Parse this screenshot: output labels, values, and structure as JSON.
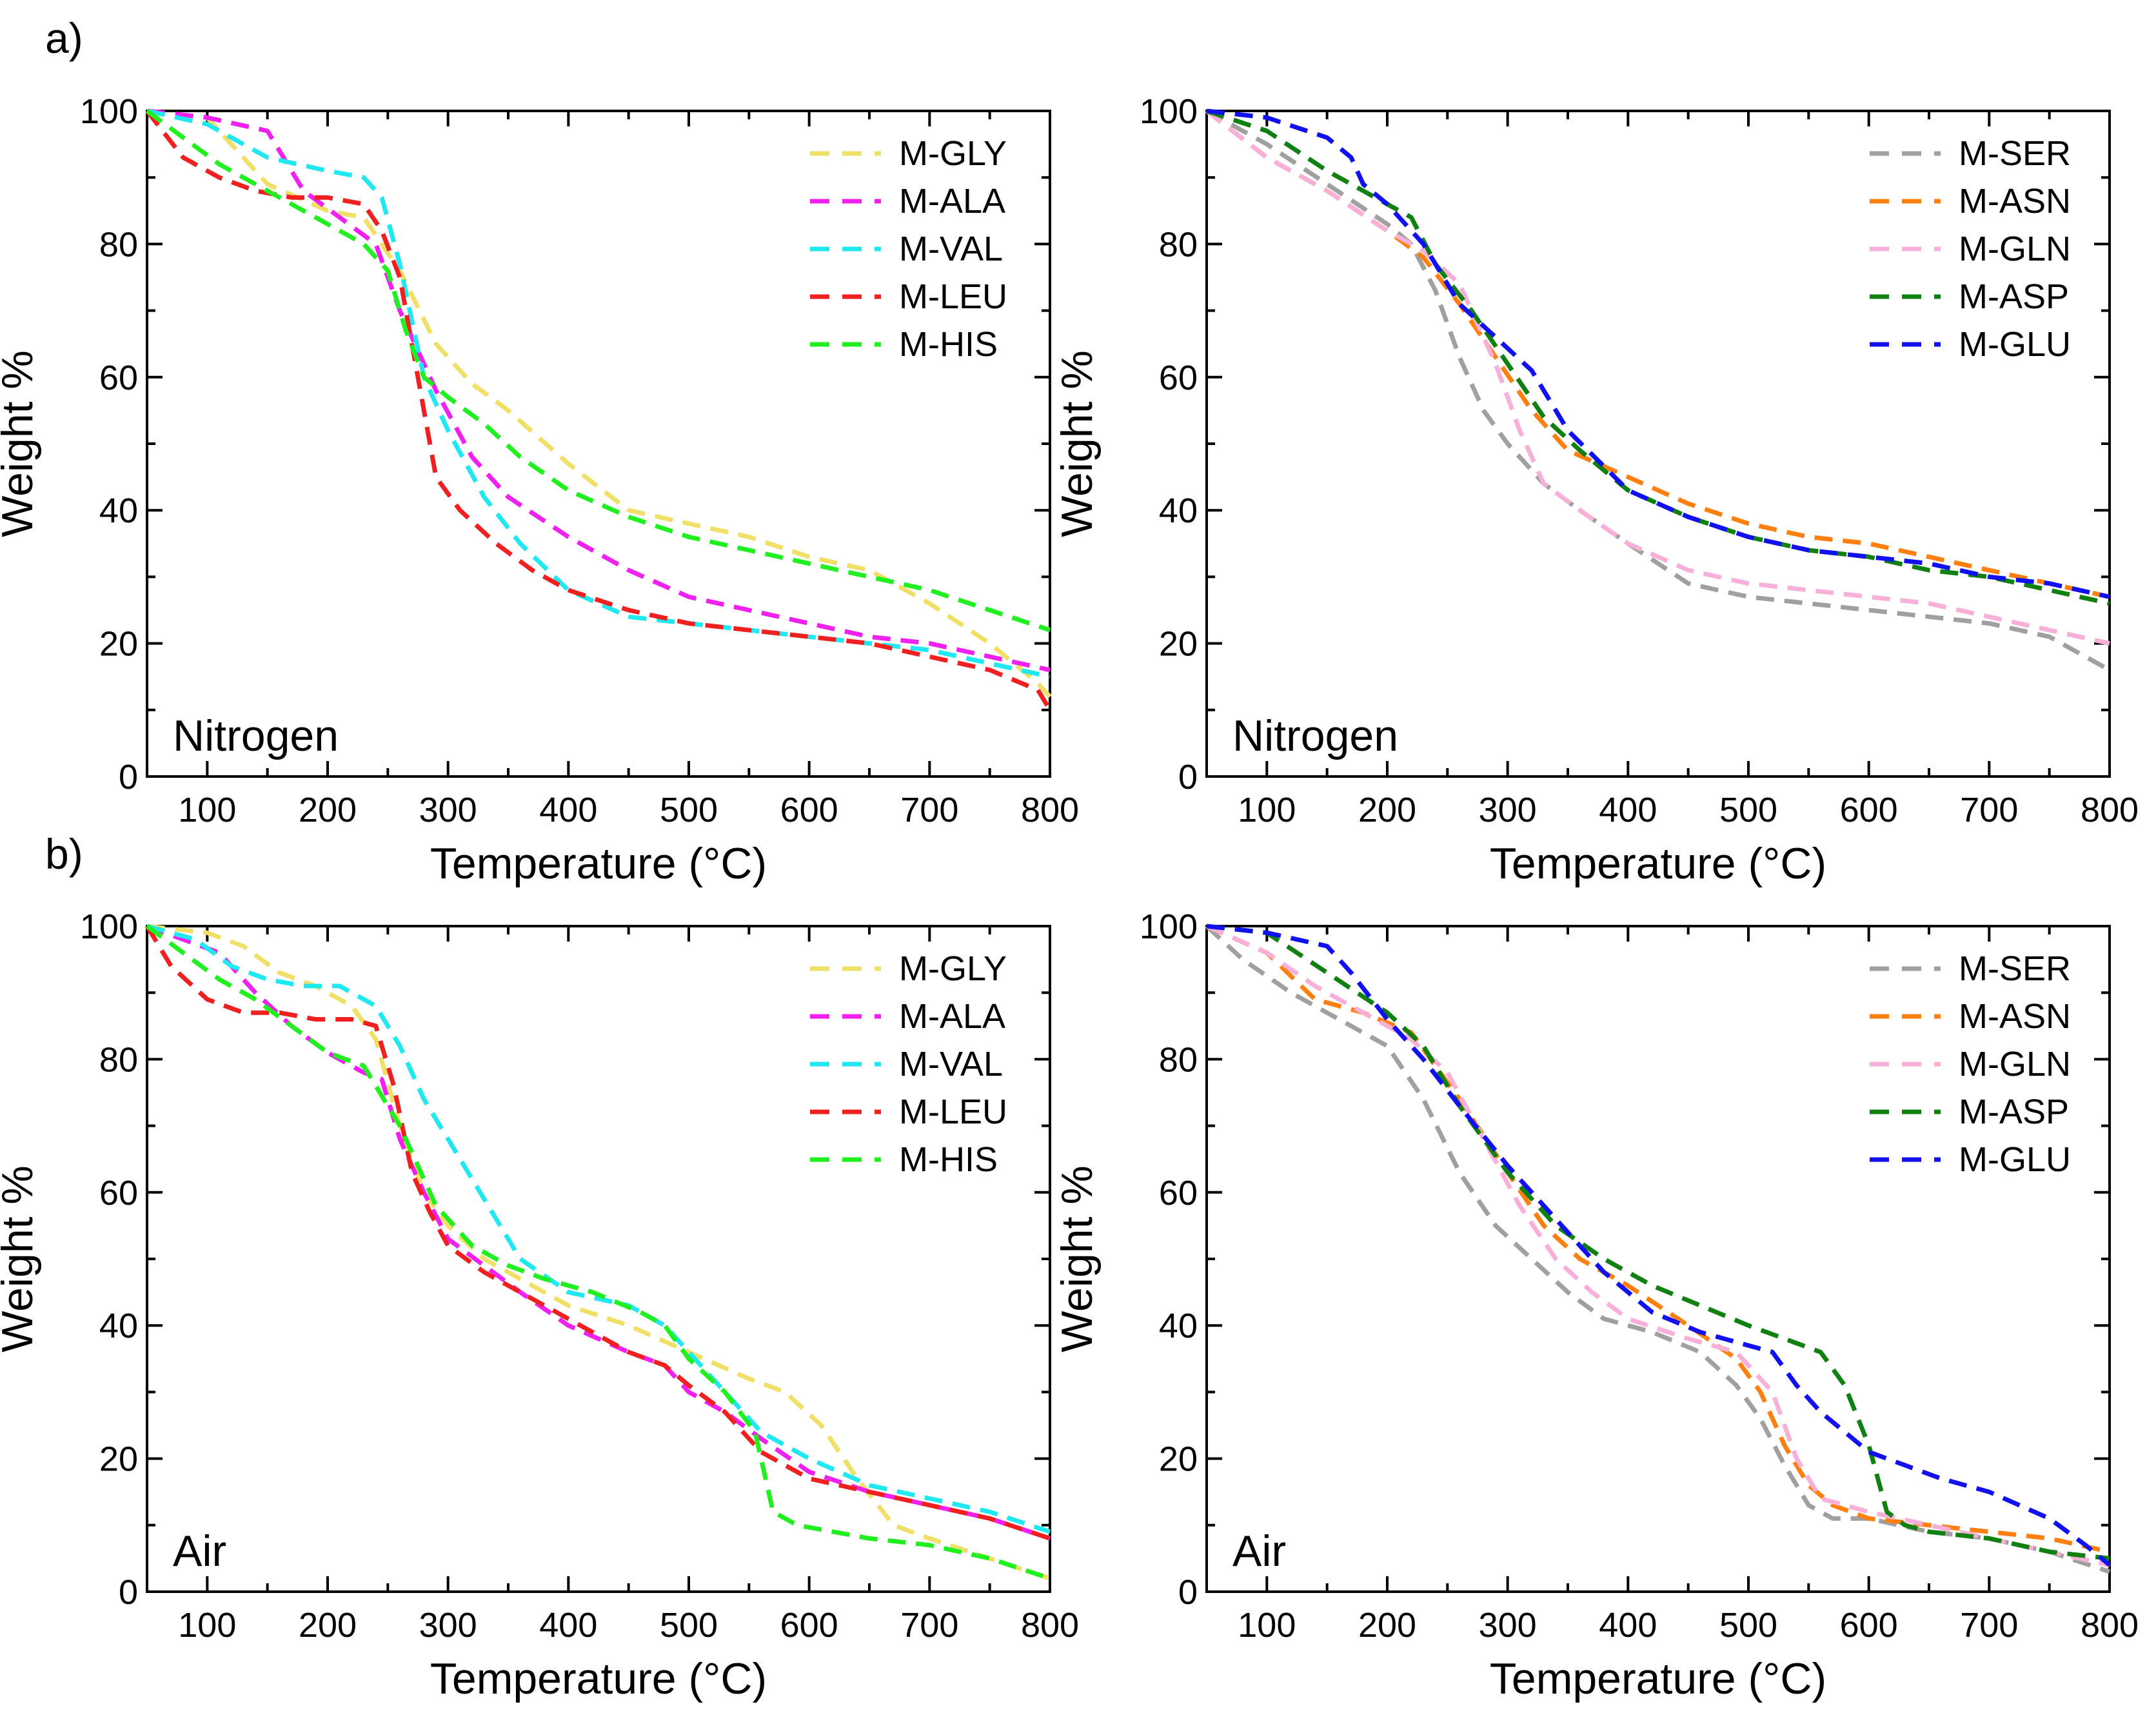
{
  "figure": {
    "panel_labels": [
      "a)",
      "b)"
    ]
  },
  "chart_data": [
    {
      "type": "line",
      "panel": "a-left",
      "condition": "Nitrogen",
      "xlabel": "Temperature (°C)",
      "ylabel": "Weight %",
      "xlim": [
        50,
        800
      ],
      "ylim": [
        0,
        100
      ],
      "xticks": [
        100,
        200,
        300,
        400,
        500,
        600,
        700,
        800
      ],
      "yticks": [
        0,
        20,
        40,
        60,
        80,
        100
      ],
      "legend_position": "top-right",
      "series": [
        {
          "name": "M-GLY",
          "color": "#F0E068",
          "x": [
            50,
            100,
            150,
            200,
            230,
            260,
            290,
            320,
            350,
            400,
            450,
            500,
            550,
            600,
            650,
            700,
            750,
            790,
            800
          ],
          "values": [
            100,
            99,
            89,
            85,
            84,
            76,
            65,
            59,
            55,
            47,
            40,
            38,
            36,
            33,
            31,
            26,
            20,
            14,
            12
          ]
        },
        {
          "name": "M-ALA",
          "color": "#F020F0",
          "x": [
            50,
            100,
            150,
            180,
            210,
            240,
            260,
            290,
            320,
            350,
            400,
            450,
            500,
            550,
            600,
            650,
            700,
            750,
            800
          ],
          "values": [
            100,
            99,
            97,
            88,
            84,
            80,
            70,
            58,
            48,
            42,
            36,
            31,
            27,
            25,
            23,
            21,
            20,
            18,
            16
          ]
        },
        {
          "name": "M-VAL",
          "color": "#20E8F0",
          "x": [
            50,
            100,
            150,
            200,
            230,
            245,
            260,
            280,
            300,
            330,
            360,
            400,
            450,
            500,
            550,
            600,
            650,
            700,
            750,
            800
          ],
          "values": [
            100,
            98,
            93,
            91,
            90,
            87,
            77,
            60,
            52,
            42,
            35,
            28,
            24,
            23,
            22,
            21,
            20,
            19,
            17,
            15
          ]
        },
        {
          "name": "M-LEU",
          "color": "#F02020",
          "x": [
            50,
            80,
            110,
            140,
            170,
            200,
            230,
            245,
            260,
            275,
            290,
            310,
            340,
            370,
            400,
            450,
            500,
            550,
            600,
            650,
            700,
            750,
            790,
            800
          ],
          "values": [
            100,
            93,
            90,
            88,
            87,
            87,
            86,
            82,
            75,
            60,
            45,
            40,
            35,
            31,
            28,
            25,
            23,
            22,
            21,
            20,
            18,
            16,
            13,
            10
          ]
        },
        {
          "name": "M-HIS",
          "color": "#20F020",
          "x": [
            50,
            80,
            110,
            140,
            170,
            200,
            230,
            250,
            265,
            280,
            300,
            330,
            360,
            400,
            450,
            500,
            550,
            600,
            650,
            700,
            750,
            800
          ],
          "values": [
            100,
            96,
            92,
            89,
            86,
            83,
            80,
            76,
            67,
            60,
            57,
            53,
            48,
            43,
            39,
            36,
            34,
            32,
            30,
            28,
            25,
            22
          ]
        }
      ]
    },
    {
      "type": "line",
      "panel": "a-right",
      "condition": "Nitrogen",
      "xlabel": "Temperature (°C)",
      "ylabel": "Weight %",
      "xlim": [
        50,
        800
      ],
      "ylim": [
        0,
        100
      ],
      "xticks": [
        100,
        200,
        300,
        400,
        500,
        600,
        700,
        800
      ],
      "yticks": [
        0,
        20,
        40,
        60,
        80,
        100
      ],
      "legend_position": "top-right",
      "series": [
        {
          "name": "M-SER",
          "color": "#A0A0A0",
          "x": [
            50,
            100,
            150,
            200,
            220,
            240,
            260,
            280,
            300,
            330,
            360,
            400,
            450,
            500,
            550,
            600,
            650,
            700,
            750,
            800
          ],
          "values": [
            100,
            95,
            89,
            83,
            80,
            73,
            63,
            55,
            50,
            44,
            40,
            35,
            29,
            27,
            26,
            25,
            24,
            23,
            21,
            16
          ]
        },
        {
          "name": "M-ASN",
          "color": "#FF8010",
          "x": [
            50,
            100,
            150,
            200,
            230,
            260,
            290,
            320,
            350,
            400,
            450,
            500,
            550,
            600,
            650,
            700,
            750,
            800
          ],
          "values": [
            100,
            93,
            88,
            82,
            78,
            71,
            63,
            55,
            49,
            45,
            41,
            38,
            36,
            35,
            33,
            31,
            29,
            27
          ]
        },
        {
          "name": "M-GLN",
          "color": "#F8B0D8",
          "x": [
            50,
            100,
            150,
            200,
            230,
            260,
            290,
            310,
            330,
            360,
            400,
            450,
            500,
            550,
            600,
            650,
            700,
            750,
            800
          ],
          "values": [
            100,
            93,
            88,
            82,
            79,
            74,
            62,
            52,
            44,
            40,
            35,
            31,
            29,
            28,
            27,
            26,
            24,
            22,
            20
          ]
        },
        {
          "name": "M-ASP",
          "color": "#108010",
          "x": [
            50,
            100,
            150,
            200,
            220,
            240,
            270,
            300,
            330,
            360,
            400,
            450,
            500,
            550,
            600,
            650,
            700,
            750,
            800
          ],
          "values": [
            100,
            97,
            91,
            86,
            84,
            77,
            70,
            62,
            54,
            49,
            43,
            39,
            36,
            34,
            33,
            31,
            30,
            28,
            26
          ]
        },
        {
          "name": "M-GLU",
          "color": "#1010F0",
          "x": [
            50,
            100,
            150,
            170,
            180,
            200,
            230,
            260,
            290,
            320,
            350,
            400,
            450,
            500,
            550,
            600,
            650,
            700,
            750,
            800
          ],
          "values": [
            100,
            99,
            96,
            93,
            89,
            86,
            80,
            71,
            66,
            61,
            52,
            43,
            39,
            36,
            34,
            33,
            32,
            30,
            29,
            27
          ]
        }
      ]
    },
    {
      "type": "line",
      "panel": "b-left",
      "condition": "Air",
      "xlabel": "Temperature (°C)",
      "ylabel": "Weight %",
      "xlim": [
        50,
        800
      ],
      "ylim": [
        0,
        100
      ],
      "xticks": [
        100,
        200,
        300,
        400,
        500,
        600,
        700,
        800
      ],
      "yticks": [
        0,
        20,
        40,
        60,
        80,
        100
      ],
      "legend_position": "top-right",
      "series": [
        {
          "name": "M-GLY",
          "color": "#F0E068",
          "x": [
            50,
            100,
            130,
            160,
            190,
            220,
            240,
            260,
            280,
            300,
            330,
            370,
            400,
            450,
            500,
            550,
            580,
            610,
            640,
            670,
            700,
            750,
            800
          ],
          "values": [
            100,
            99,
            97,
            93,
            91,
            88,
            83,
            70,
            60,
            55,
            50,
            46,
            43,
            40,
            36,
            32,
            30,
            25,
            17,
            10,
            8,
            5,
            2
          ]
        },
        {
          "name": "M-ALA",
          "color": "#F020F0",
          "x": [
            50,
            80,
            110,
            140,
            170,
            200,
            230,
            245,
            260,
            280,
            300,
            330,
            360,
            400,
            450,
            480,
            500,
            530,
            560,
            600,
            650,
            700,
            750,
            800
          ],
          "values": [
            100,
            98,
            96,
            90,
            85,
            81,
            78,
            77,
            68,
            60,
            53,
            49,
            45,
            40,
            36,
            34,
            30,
            27,
            23,
            18,
            15,
            13,
            11,
            8
          ]
        },
        {
          "name": "M-VAL",
          "color": "#20E8F0",
          "x": [
            50,
            90,
            120,
            150,
            180,
            210,
            240,
            260,
            280,
            300,
            330,
            360,
            400,
            450,
            480,
            500,
            530,
            560,
            600,
            650,
            700,
            750,
            800
          ],
          "values": [
            100,
            98,
            94,
            92,
            91,
            91,
            88,
            82,
            74,
            68,
            59,
            50,
            45,
            43,
            40,
            36,
            30,
            24,
            20,
            16,
            14,
            12,
            9
          ]
        },
        {
          "name": "M-LEU",
          "color": "#F02020",
          "x": [
            50,
            70,
            100,
            130,
            160,
            190,
            220,
            240,
            255,
            270,
            285,
            300,
            330,
            360,
            400,
            450,
            480,
            500,
            530,
            560,
            600,
            650,
            700,
            750,
            800
          ],
          "values": [
            100,
            94,
            89,
            87,
            87,
            86,
            86,
            85,
            76,
            63,
            57,
            52,
            48,
            45,
            41,
            36,
            34,
            31,
            27,
            21,
            17,
            15,
            13,
            11,
            8
          ]
        },
        {
          "name": "M-HIS",
          "color": "#20F020",
          "x": [
            50,
            80,
            110,
            140,
            170,
            200,
            230,
            260,
            290,
            320,
            350,
            380,
            420,
            460,
            480,
            500,
            530,
            555,
            570,
            590,
            620,
            650,
            700,
            750,
            800
          ],
          "values": [
            100,
            96,
            92,
            89,
            85,
            81,
            79,
            70,
            58,
            52,
            49,
            47,
            45,
            42,
            40,
            35,
            30,
            24,
            12,
            10,
            9,
            8,
            7,
            5,
            2
          ]
        }
      ]
    },
    {
      "type": "line",
      "panel": "b-right",
      "condition": "Air",
      "xlabel": "Temperature (°C)",
      "ylabel": "Weight %",
      "xlim": [
        50,
        800
      ],
      "ylim": [
        0,
        100
      ],
      "xticks": [
        100,
        200,
        300,
        400,
        500,
        600,
        700,
        800
      ],
      "yticks": [
        0,
        20,
        40,
        60,
        80,
        100
      ],
      "legend_position": "top-right",
      "series": [
        {
          "name": "M-SER",
          "color": "#A0A0A0",
          "x": [
            50,
            80,
            120,
            160,
            200,
            230,
            260,
            290,
            320,
            350,
            380,
            420,
            460,
            490,
            510,
            530,
            550,
            570,
            600,
            650,
            700,
            750,
            800
          ],
          "values": [
            100,
            95,
            90,
            86,
            82,
            74,
            63,
            55,
            50,
            45,
            41,
            39,
            36,
            31,
            26,
            19,
            13,
            11,
            11,
            9,
            8,
            6,
            3
          ]
        },
        {
          "name": "M-ASN",
          "color": "#FF8010",
          "x": [
            50,
            100,
            140,
            180,
            220,
            260,
            300,
            330,
            360,
            400,
            450,
            490,
            510,
            530,
            550,
            570,
            600,
            650,
            700,
            750,
            800
          ],
          "values": [
            100,
            96,
            89,
            87,
            84,
            74,
            63,
            55,
            50,
            46,
            40,
            35,
            30,
            22,
            16,
            13,
            11,
            10,
            9,
            8,
            6
          ]
        },
        {
          "name": "M-GLN",
          "color": "#F8B0D8",
          "x": [
            50,
            100,
            140,
            180,
            220,
            250,
            280,
            310,
            340,
            370,
            400,
            450,
            490,
            520,
            540,
            560,
            600,
            650,
            700,
            750,
            800
          ],
          "values": [
            100,
            96,
            91,
            87,
            83,
            78,
            68,
            58,
            50,
            45,
            41,
            38,
            36,
            30,
            20,
            14,
            12,
            10,
            8,
            6,
            4
          ]
        },
        {
          "name": "M-ASP",
          "color": "#108010",
          "x": [
            50,
            100,
            150,
            200,
            230,
            260,
            300,
            340,
            380,
            420,
            460,
            500,
            530,
            560,
            580,
            600,
            615,
            630,
            650,
            700,
            750,
            800
          ],
          "values": [
            100,
            99,
            93,
            87,
            82,
            73,
            63,
            55,
            50,
            46,
            43,
            40,
            38,
            36,
            31,
            22,
            12,
            10,
            9,
            8,
            6,
            5
          ]
        },
        {
          "name": "M-GLU",
          "color": "#1010F0",
          "x": [
            50,
            100,
            150,
            170,
            200,
            230,
            260,
            300,
            340,
            380,
            420,
            460,
            500,
            520,
            540,
            560,
            600,
            630,
            660,
            700,
            750,
            780,
            800
          ],
          "values": [
            100,
            99,
            97,
            93,
            86,
            80,
            73,
            64,
            56,
            48,
            42,
            39,
            37,
            36,
            31,
            27,
            21,
            19,
            17,
            15,
            11,
            7,
            4
          ]
        }
      ]
    }
  ]
}
